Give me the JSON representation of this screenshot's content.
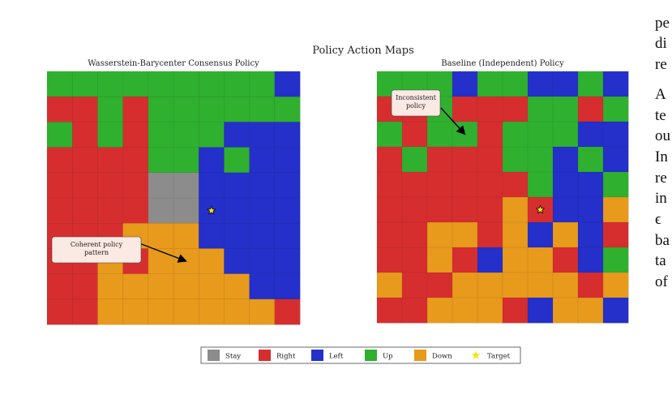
{
  "colors": {
    "Stay": "#8c8c8c",
    "Right": "#d62e2f",
    "Left": "#2430c9",
    "Up": "#2fb02f",
    "Down": "#e79a1c",
    "Target": "#f5e21a",
    "annotation_bg": "#fbe9e3"
  },
  "chart_data": {
    "type": "heatmap",
    "title": "Policy Action Maps",
    "legend": {
      "placement": "bottom-center",
      "entries": [
        "Stay",
        "Right",
        "Left",
        "Up",
        "Down",
        "Target"
      ]
    },
    "panels": [
      {
        "title": "Wasserstein-Barycenter Consensus Policy",
        "target": [
          5,
          6
        ],
        "annotation": {
          "text": [
            "Coherent policy",
            "pattern"
          ],
          "arrow_to": [
            7,
            5
          ]
        },
        "grid": [
          [
            "Up",
            "Up",
            "Up",
            "Up",
            "Up",
            "Up",
            "Up",
            "Up",
            "Up",
            "Left"
          ],
          [
            "Right",
            "Right",
            "Up",
            "Right",
            "Up",
            "Up",
            "Up",
            "Up",
            "Up",
            "Up"
          ],
          [
            "Up",
            "Right",
            "Up",
            "Right",
            "Up",
            "Up",
            "Up",
            "Left",
            "Left",
            "Left"
          ],
          [
            "Right",
            "Right",
            "Right",
            "Right",
            "Up",
            "Up",
            "Left",
            "Up",
            "Left",
            "Left"
          ],
          [
            "Right",
            "Right",
            "Right",
            "Right",
            "Stay",
            "Stay",
            "Left",
            "Left",
            "Left",
            "Left"
          ],
          [
            "Right",
            "Right",
            "Right",
            "Right",
            "Stay",
            "Stay",
            "Left",
            "Left",
            "Left",
            "Left"
          ],
          [
            "Right",
            "Right",
            "Right",
            "Down",
            "Down",
            "Down",
            "Left",
            "Left",
            "Left",
            "Left"
          ],
          [
            "Right",
            "Right",
            "Down",
            "Right",
            "Down",
            "Down",
            "Down",
            "Left",
            "Left",
            "Left"
          ],
          [
            "Right",
            "Right",
            "Down",
            "Down",
            "Down",
            "Down",
            "Down",
            "Down",
            "Left",
            "Left"
          ],
          [
            "Right",
            "Right",
            "Down",
            "Down",
            "Down",
            "Down",
            "Down",
            "Down",
            "Down",
            "Right"
          ]
        ]
      },
      {
        "title": "Baseline (Independent) Policy",
        "target": [
          5,
          6
        ],
        "annotation": {
          "text": [
            "Inconsistent",
            "policy"
          ],
          "arrow_to": [
            2,
            3
          ]
        },
        "grid": [
          [
            "Up",
            "Up",
            "Up",
            "Left",
            "Up",
            "Up",
            "Left",
            "Left",
            "Up",
            "Left"
          ],
          [
            "Right",
            "Right",
            "Up",
            "Right",
            "Right",
            "Right",
            "Up",
            "Up",
            "Right",
            "Up"
          ],
          [
            "Up",
            "Right",
            "Up",
            "Up",
            "Right",
            "Up",
            "Up",
            "Up",
            "Left",
            "Left"
          ],
          [
            "Right",
            "Up",
            "Right",
            "Right",
            "Right",
            "Up",
            "Up",
            "Left",
            "Up",
            "Left"
          ],
          [
            "Right",
            "Right",
            "Right",
            "Right",
            "Right",
            "Right",
            "Up",
            "Left",
            "Left",
            "Up"
          ],
          [
            "Right",
            "Right",
            "Right",
            "Right",
            "Right",
            "Down",
            "Right",
            "Left",
            "Left",
            "Down"
          ],
          [
            "Right",
            "Right",
            "Down",
            "Down",
            "Right",
            "Down",
            "Left",
            "Down",
            "Left",
            "Right"
          ],
          [
            "Right",
            "Right",
            "Down",
            "Right",
            "Left",
            "Down",
            "Down",
            "Right",
            "Left",
            "Up"
          ],
          [
            "Down",
            "Right",
            "Right",
            "Down",
            "Down",
            "Down",
            "Down",
            "Down",
            "Right",
            "Down"
          ],
          [
            "Right",
            "Right",
            "Down",
            "Down",
            "Down",
            "Right",
            "Left",
            "Down",
            "Down",
            "Left"
          ]
        ]
      }
    ]
  },
  "side_text": {
    "lines": [
      "pe",
      "di",
      "re",
      "A",
      "te",
      "ou",
      "In",
      "re",
      "in",
      "ϵ",
      "ba",
      "ta",
      "of"
    ]
  }
}
